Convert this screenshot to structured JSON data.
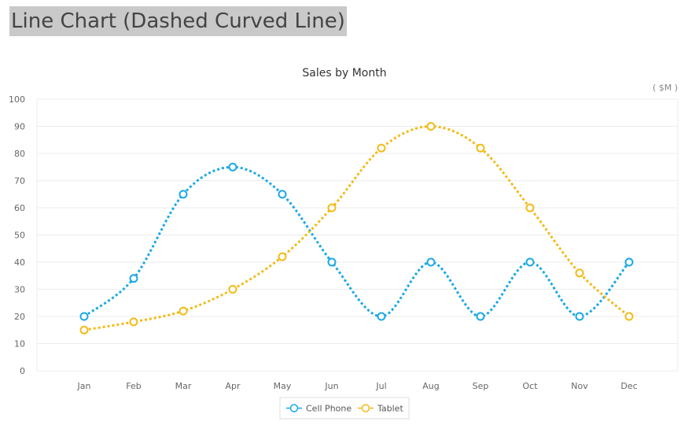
{
  "page": {
    "title": "Line Chart (Dashed Curved Line)"
  },
  "chart_data": {
    "type": "line",
    "title": "Sales by Month",
    "unit_label": "( $M )",
    "categories": [
      "Jan",
      "Feb",
      "Mar",
      "Apr",
      "May",
      "Jun",
      "Jul",
      "Aug",
      "Sep",
      "Oct",
      "Nov",
      "Dec"
    ],
    "ylim": [
      0,
      100
    ],
    "yticks": [
      0,
      10,
      20,
      30,
      40,
      50,
      60,
      70,
      80,
      90,
      100
    ],
    "grid": true,
    "line_style": "dashed-curved",
    "legend_position": "bottom-center",
    "series": [
      {
        "name": "Cell Phone",
        "color": "#1aa9e6",
        "values": [
          20,
          34,
          65,
          75,
          65,
          40,
          20,
          40,
          20,
          40,
          20,
          40
        ]
      },
      {
        "name": "Tablet",
        "color": "#f2bb16",
        "values": [
          15,
          18,
          22,
          30,
          42,
          60,
          82,
          90,
          82,
          60,
          36,
          20
        ]
      }
    ]
  }
}
